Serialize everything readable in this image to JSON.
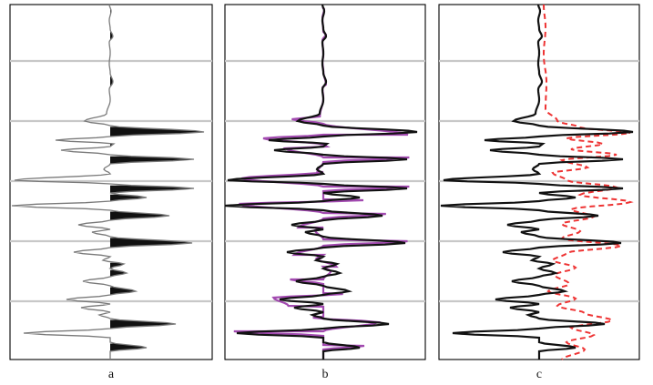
{
  "figure": {
    "panels": [
      {
        "caption": "a",
        "style": "wiggle-fill"
      },
      {
        "caption": "b",
        "style": "overlay-solid"
      },
      {
        "caption": "c",
        "style": "overlay-dashed"
      }
    ]
  },
  "colors": {
    "trace_primary": "#111111",
    "trace_gray": "#7a7a7a",
    "trace_purple": "#a24ab0",
    "trace_red_dashed": "#ee3333",
    "grid": "#c8c8c8",
    "frame": "#000000"
  }
}
